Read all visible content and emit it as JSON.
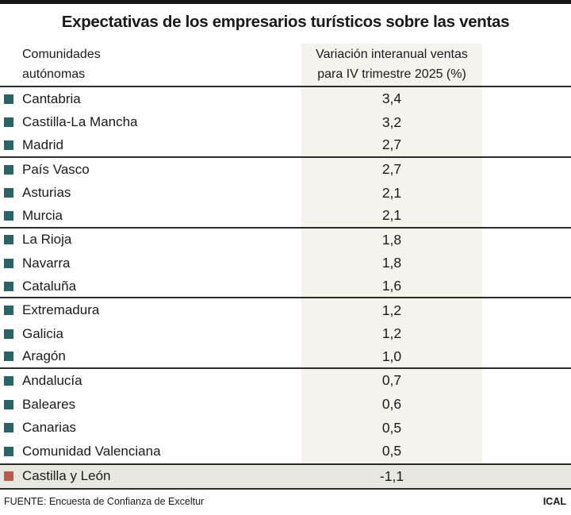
{
  "title": "Expectativas de los empresarios turísticos sobre las ventas",
  "table": {
    "col1_header": "Comunidades\nautónomas",
    "col2_header": "Variación interanual ventas\npara IV trimestre 2025 (%)",
    "rows": [
      {
        "name": "Cantabria",
        "value": "3,4",
        "bullet": "teal",
        "group_end": false,
        "highlight": false
      },
      {
        "name": "Castilla-La Mancha",
        "value": "3,2",
        "bullet": "teal",
        "group_end": false,
        "highlight": false
      },
      {
        "name": "Madrid",
        "value": "2,7",
        "bullet": "teal",
        "group_end": true,
        "highlight": false
      },
      {
        "name": "País Vasco",
        "value": "2,7",
        "bullet": "teal",
        "group_end": false,
        "highlight": false
      },
      {
        "name": "Asturias",
        "value": "2,1",
        "bullet": "teal",
        "group_end": false,
        "highlight": false
      },
      {
        "name": "Murcia",
        "value": "2,1",
        "bullet": "teal",
        "group_end": true,
        "highlight": false
      },
      {
        "name": "La Rioja",
        "value": "1,8",
        "bullet": "teal",
        "group_end": false,
        "highlight": false
      },
      {
        "name": "Navarra",
        "value": "1,8",
        "bullet": "teal",
        "group_end": false,
        "highlight": false
      },
      {
        "name": "Cataluña",
        "value": "1,6",
        "bullet": "teal",
        "group_end": true,
        "highlight": false
      },
      {
        "name": "Extremadura",
        "value": "1,2",
        "bullet": "teal",
        "group_end": false,
        "highlight": false
      },
      {
        "name": "Galicia",
        "value": "1,2",
        "bullet": "teal",
        "group_end": false,
        "highlight": false
      },
      {
        "name": "Aragón",
        "value": "1,0",
        "bullet": "teal",
        "group_end": true,
        "highlight": false
      },
      {
        "name": "Andalucía",
        "value": "0,7",
        "bullet": "teal",
        "group_end": false,
        "highlight": false
      },
      {
        "name": "Baleares",
        "value": "0,6",
        "bullet": "teal",
        "group_end": false,
        "highlight": false
      },
      {
        "name": "Canarias",
        "value": "0,5",
        "bullet": "teal",
        "group_end": false,
        "highlight": false
      },
      {
        "name": "Comunidad Valenciana",
        "value": "0,5",
        "bullet": "teal",
        "group_end": false,
        "highlight": false
      },
      {
        "name": "Castilla y León",
        "value": "-1,1",
        "bullet": "red",
        "group_end": false,
        "highlight": true
      }
    ]
  },
  "footer": {
    "source": "FUENTE: Encuesta de Confianza de Exceltur",
    "credit": "ICAL"
  },
  "colors": {
    "teal": "#2c6367",
    "red": "#b75b4c",
    "band": "#f5f3ec",
    "highlight": "#e9e8e0",
    "rule": "#2b2b2b",
    "ink": "#1a1a1a"
  },
  "chart_data": {
    "type": "table",
    "title": "Expectativas de los empresarios turísticos sobre las ventas",
    "columns": [
      "Comunidades autónomas",
      "Variación interanual ventas para IV trimestre 2025 (%)"
    ],
    "categories": [
      "Cantabria",
      "Castilla-La Mancha",
      "Madrid",
      "País Vasco",
      "Asturias",
      "Murcia",
      "La Rioja",
      "Navarra",
      "Cataluña",
      "Extremadura",
      "Galicia",
      "Aragón",
      "Andalucía",
      "Baleares",
      "Canarias",
      "Comunidad Valenciana",
      "Castilla y León"
    ],
    "values": [
      3.4,
      3.2,
      2.7,
      2.7,
      2.1,
      2.1,
      1.8,
      1.8,
      1.6,
      1.2,
      1.2,
      1.0,
      0.7,
      0.6,
      0.5,
      0.5,
      -1.1
    ],
    "highlighted_category": "Castilla y León",
    "source": "FUENTE: Encuesta de Confianza de Exceltur",
    "credit": "ICAL"
  }
}
